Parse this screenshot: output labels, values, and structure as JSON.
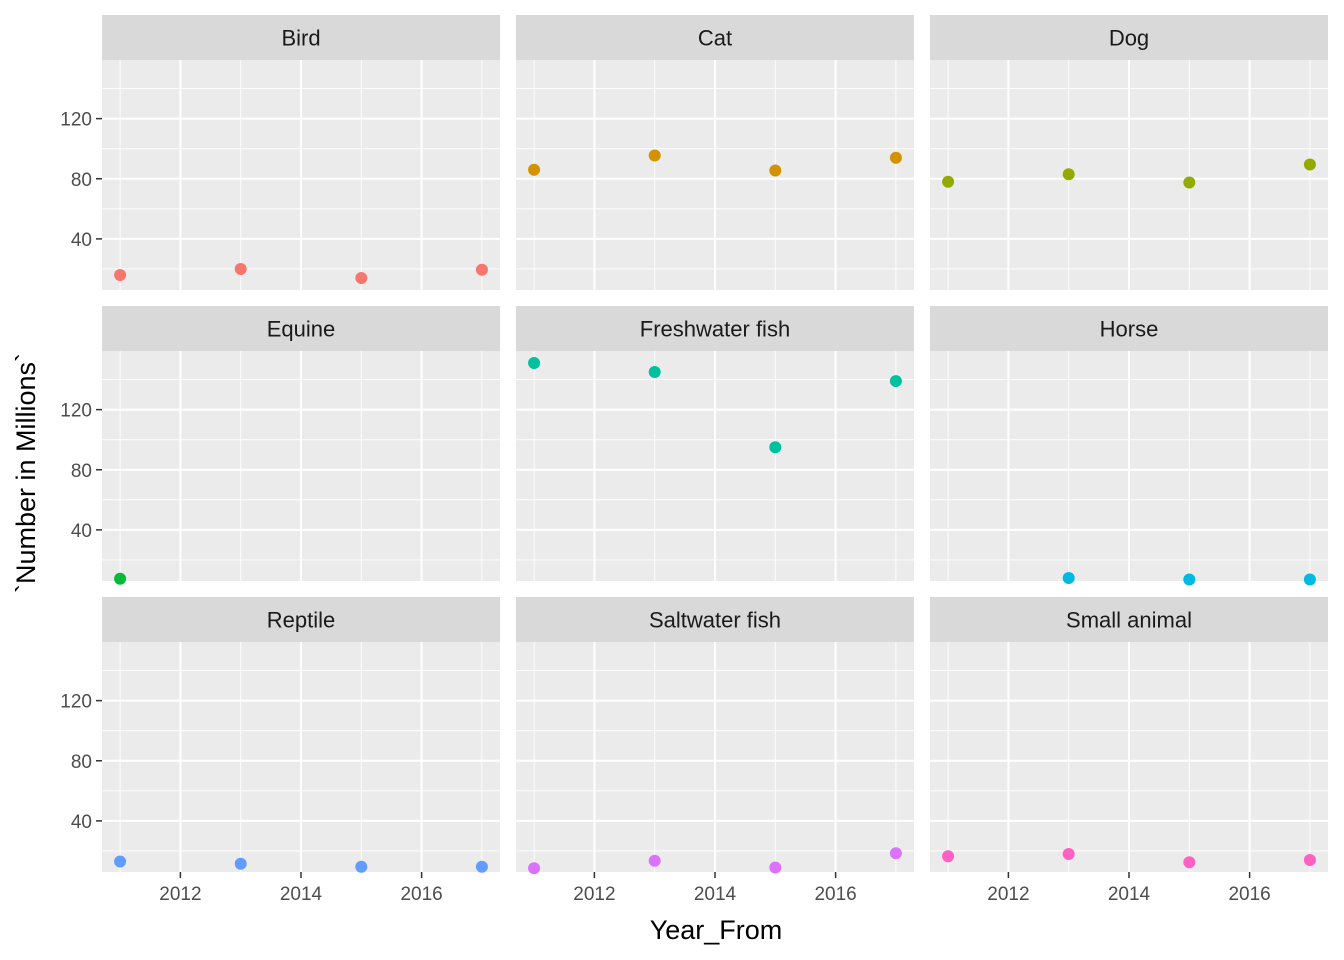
{
  "chart_data": {
    "type": "scatter",
    "facet_layout": "3x3 grid, shared axes",
    "xlabel": "Year_From",
    "ylabel": "`Number in Millions`",
    "xlim": [
      2010.7,
      2017.3
    ],
    "ylim": [
      6,
      159
    ],
    "x_ticks": [
      2012,
      2014,
      2016
    ],
    "y_ticks": [
      40,
      80,
      120
    ],
    "x_minor": [
      2011,
      2013,
      2015,
      2017
    ],
    "y_minor": [
      20,
      60,
      100,
      140
    ],
    "grid": true,
    "legend": "none",
    "background": "#ebebeb",
    "strip_background": "#d9d9d9",
    "grid_color": "#ffffff",
    "panels": [
      {
        "name": "Bird",
        "color": "#F8766D",
        "points": [
          [
            2011,
            16.0
          ],
          [
            2013,
            20.0
          ],
          [
            2015,
            14.0
          ],
          [
            2017,
            19.5
          ]
        ]
      },
      {
        "name": "Cat",
        "color": "#D39200",
        "points": [
          [
            2011,
            86.0
          ],
          [
            2013,
            95.5
          ],
          [
            2015,
            85.5
          ],
          [
            2017,
            94.0
          ]
        ]
      },
      {
        "name": "Dog",
        "color": "#93AA00",
        "points": [
          [
            2011,
            78.0
          ],
          [
            2013,
            83.0
          ],
          [
            2015,
            77.5
          ],
          [
            2017,
            89.5
          ]
        ]
      },
      {
        "name": "Equine",
        "color": "#00BA38",
        "points": [
          [
            2011,
            7.5
          ]
        ]
      },
      {
        "name": "Freshwater fish",
        "color": "#00C19F",
        "points": [
          [
            2011,
            151.0
          ],
          [
            2013,
            145.0
          ],
          [
            2015,
            95.0
          ],
          [
            2017,
            139.0
          ]
        ]
      },
      {
        "name": "Horse",
        "color": "#00B9E3",
        "points": [
          [
            2013,
            8.0
          ],
          [
            2015,
            7.0
          ],
          [
            2017,
            7.0
          ]
        ]
      },
      {
        "name": "Reptile",
        "color": "#619CFF",
        "points": [
          [
            2011,
            13.0
          ],
          [
            2013,
            11.5
          ],
          [
            2015,
            9.5
          ],
          [
            2017,
            9.5
          ]
        ]
      },
      {
        "name": "Saltwater fish",
        "color": "#DB72FB",
        "points": [
          [
            2011,
            8.5
          ],
          [
            2013,
            13.5
          ],
          [
            2015,
            9.0
          ],
          [
            2017,
            18.5
          ]
        ]
      },
      {
        "name": "Small animal",
        "color": "#FF61C3",
        "points": [
          [
            2011,
            16.5
          ],
          [
            2013,
            18.0
          ],
          [
            2015,
            12.5
          ],
          [
            2017,
            14.0
          ]
        ]
      }
    ]
  }
}
